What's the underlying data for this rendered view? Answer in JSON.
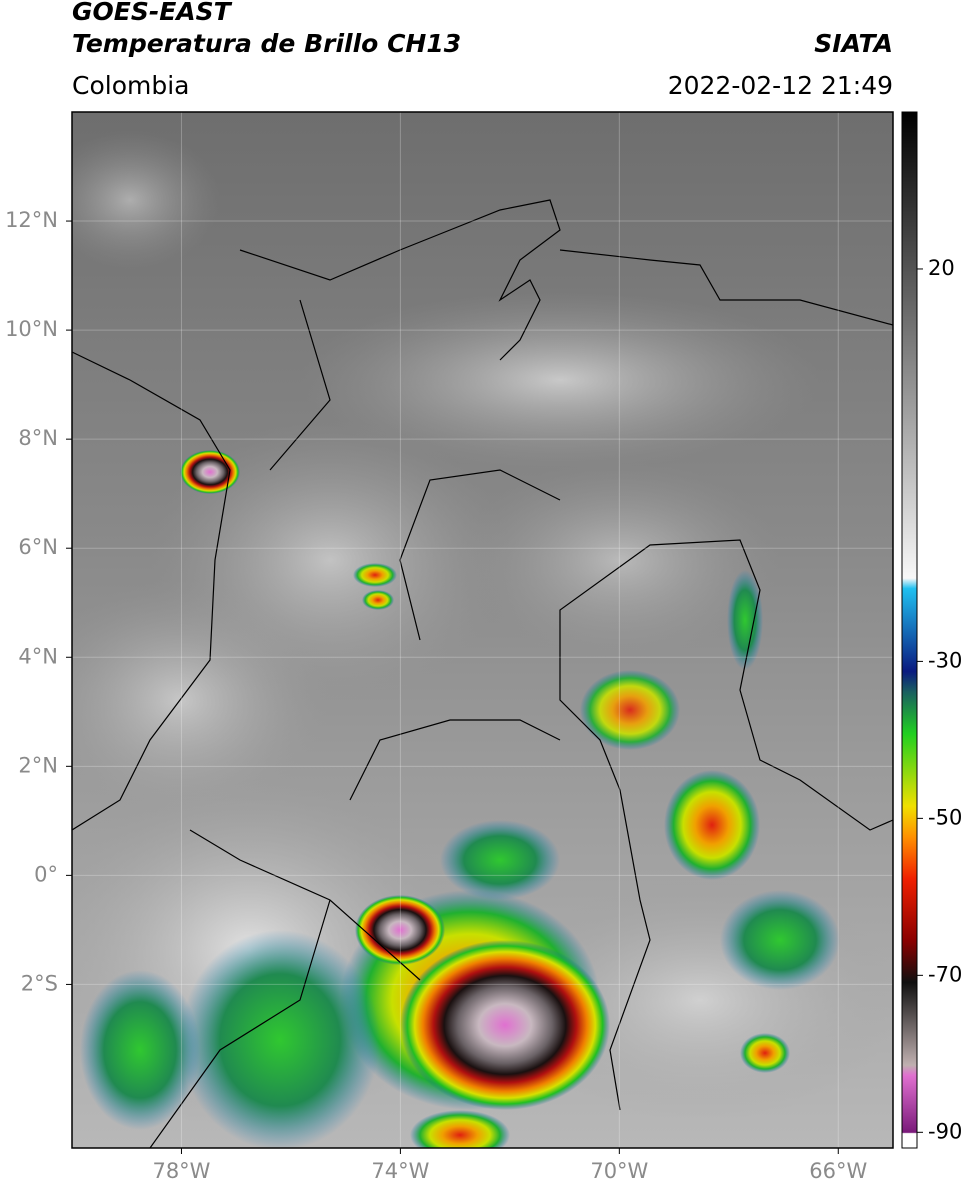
{
  "header": {
    "title": "GOES-EAST",
    "subtitle": "Temperatura de Brillo CH13",
    "source": "SIATA",
    "region": "Colombia",
    "datetime": "2022-02-12 21:49"
  },
  "map": {
    "xlim": [
      -80,
      -65
    ],
    "ylim": [
      -5,
      14
    ],
    "xticks": [
      {
        "value": -78,
        "label": "78°W"
      },
      {
        "value": -74,
        "label": "74°W"
      },
      {
        "value": -70,
        "label": "70°W"
      },
      {
        "value": -66,
        "label": "66°W"
      }
    ],
    "yticks": [
      {
        "value": 12,
        "label": "12°N"
      },
      {
        "value": 10,
        "label": "10°N"
      },
      {
        "value": 8,
        "label": "8°N"
      },
      {
        "value": 6,
        "label": "6°N"
      },
      {
        "value": 4,
        "label": "4°N"
      },
      {
        "value": 2,
        "label": "2°N"
      },
      {
        "value": 0,
        "label": "0°"
      },
      {
        "value": -2,
        "label": "2°S"
      }
    ]
  },
  "colorbar": {
    "lim": [
      -92,
      40
    ],
    "ticks": [
      20,
      -30,
      -50,
      -70,
      -90
    ]
  }
}
